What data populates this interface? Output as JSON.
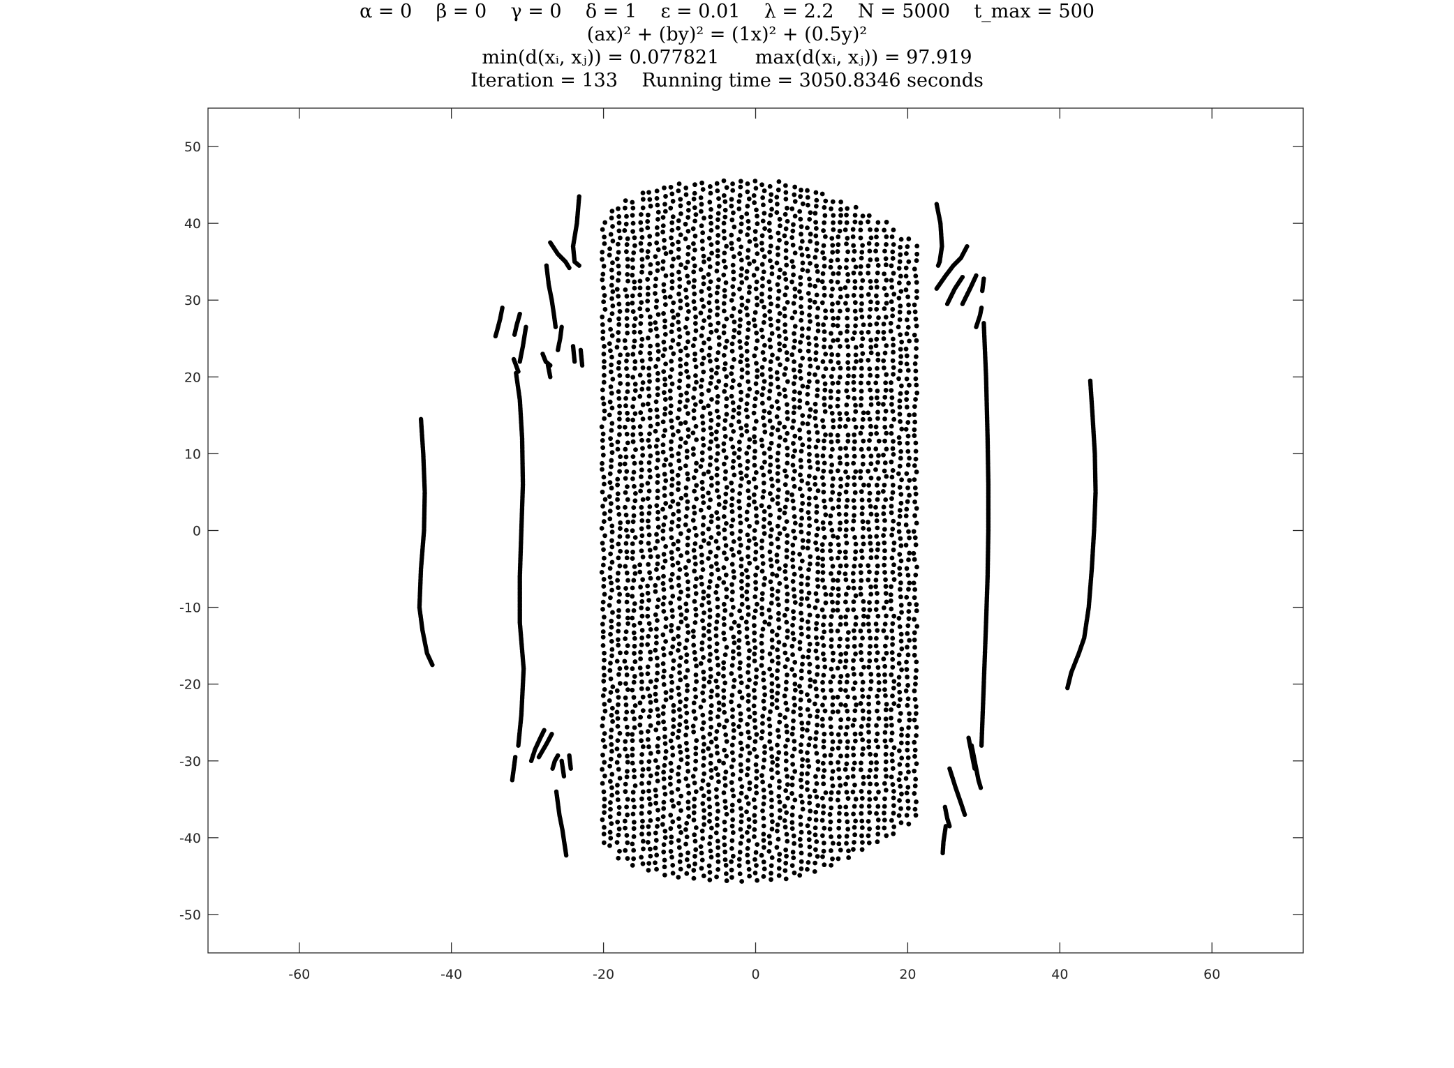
{
  "chart_data": {
    "type": "scatter",
    "title": [
      "α = 0    β = 0    γ = 0    δ = 1    ε = 0.01    λ = 2.2    N = 5000    t_max = 500",
      "(ax)² + (by)² = (1x)² + (0.5y)²",
      "min(d(xᵢ, xⱼ)) = 0.077821      max(d(xᵢ, xⱼ)) = 97.919",
      "Iteration = 133    Running time = 3050.8346 seconds"
    ],
    "xlabel": "",
    "ylabel": "",
    "xlim": [
      -72,
      72
    ],
    "ylim": [
      -55,
      55
    ],
    "x_ticks": [
      -60,
      -40,
      -20,
      0,
      20,
      40,
      60
    ],
    "y_ticks": [
      -50,
      -40,
      -30,
      -20,
      -10,
      0,
      10,
      20,
      30,
      40,
      50
    ],
    "grid": false,
    "marker_color": "#000000",
    "series": [
      {
        "kind": "lattice",
        "x": [
          -20,
          -19,
          -18,
          -17,
          -16,
          -15,
          -14,
          -13,
          -12,
          -11,
          -10,
          -9,
          -8,
          -7,
          -6,
          -5,
          -4,
          -3,
          -2,
          -1,
          0,
          1,
          2,
          3,
          4,
          5,
          6,
          7,
          8,
          9,
          10,
          11,
          12,
          13,
          14,
          15,
          16,
          17,
          18,
          19,
          20,
          21
        ],
        "top": [
          41,
          42,
          43,
          43.5,
          44,
          44.3,
          44.7,
          45,
          45.2,
          45.4,
          45.5,
          45.6,
          45.7,
          45.8,
          45.9,
          46,
          46,
          46,
          46,
          46,
          46,
          46,
          45.9,
          45.8,
          45.7,
          45.5,
          45.3,
          45,
          44.7,
          44.4,
          44,
          43.5,
          43,
          42.5,
          42,
          41.5,
          41,
          40.5,
          40,
          39,
          38.5,
          38
        ],
        "bottom": [
          -41,
          -42,
          -43,
          -43.5,
          -44,
          -44.3,
          -44.7,
          -45,
          -45.2,
          -45.4,
          -45.5,
          -45.6,
          -45.7,
          -45.8,
          -45.9,
          -46,
          -46,
          -46,
          -46,
          -46,
          -46,
          -46,
          -45.9,
          -45.8,
          -45.7,
          -45.5,
          -45.3,
          -45,
          -44.7,
          -44.4,
          -44,
          -43.5,
          -43,
          -42.5,
          -42,
          -41.5,
          -41,
          -40.5,
          -40,
          -39,
          -38.5,
          -38
        ]
      },
      {
        "kind": "curve",
        "x": [
          -44,
          -43.7,
          -43.5,
          -43.6,
          -44,
          -44.2,
          -43.8,
          -43.2,
          -42.5
        ],
        "y": [
          14.5,
          10,
          5,
          0,
          -5,
          -10,
          -13,
          -16,
          -17.5
        ]
      },
      {
        "kind": "curve",
        "x": [
          -31.5,
          -31,
          -30.7,
          -30.6,
          -30.8,
          -31,
          -31,
          -30.5,
          -30.8,
          -31.2
        ],
        "y": [
          20.5,
          17,
          12,
          6,
          0,
          -6,
          -12,
          -18,
          -24,
          -28
        ]
      },
      {
        "kind": "curve",
        "x": [
          44,
          44.3,
          44.6,
          44.7,
          44.5,
          44.2,
          43.8,
          43.2,
          42.5,
          41.5,
          41
        ],
        "y": [
          19.5,
          15,
          10,
          5,
          0,
          -5,
          -10,
          -14,
          -16,
          -18.5,
          -20.5
        ]
      },
      {
        "kind": "curve",
        "x": [
          30,
          30.3,
          30.5,
          30.6,
          30.6,
          30.5,
          30.3,
          30,
          29.7
        ],
        "y": [
          27,
          20,
          12,
          6,
          0,
          -6,
          -12,
          -20,
          -28
        ]
      },
      {
        "kind": "curve",
        "x": [
          -23.2,
          -23.5,
          -24,
          -23.8,
          -23.2
        ],
        "y": [
          43.5,
          40,
          37,
          35,
          34.5
        ]
      },
      {
        "kind": "curve",
        "x": [
          -27.5,
          -27.2,
          -26.8,
          -26.5,
          -26.3
        ],
        "y": [
          34.5,
          32,
          30,
          28,
          26.5
        ]
      },
      {
        "kind": "curve",
        "x": [
          -27,
          -26,
          -25,
          -24.5
        ],
        "y": [
          37.5,
          36,
          35,
          34.2
        ]
      },
      {
        "kind": "curve",
        "x": [
          -33.3,
          -33.6,
          -34,
          -34.2
        ],
        "y": [
          29,
          27.5,
          26,
          25.3
        ]
      },
      {
        "kind": "curve",
        "x": [
          -31,
          -31.4,
          -31.7
        ],
        "y": [
          28.2,
          26.8,
          25.5
        ]
      },
      {
        "kind": "curve",
        "x": [
          -30.2,
          -30.6,
          -31
        ],
        "y": [
          26.5,
          24,
          22
        ]
      },
      {
        "kind": "curve",
        "x": [
          -31.8,
          -31.5,
          -31.2
        ],
        "y": [
          22.3,
          21.5,
          20.7
        ]
      },
      {
        "kind": "curve",
        "x": [
          -25.5,
          -25.7,
          -26
        ],
        "y": [
          26.5,
          25,
          23.5
        ]
      },
      {
        "kind": "curve",
        "x": [
          -28,
          -27.6,
          -27
        ],
        "y": [
          23,
          22,
          21.5
        ]
      },
      {
        "kind": "curve",
        "x": [
          -27.3,
          -27
        ],
        "y": [
          21.5,
          20
        ]
      },
      {
        "kind": "curve",
        "x": [
          -24,
          -23.8
        ],
        "y": [
          24,
          22
        ]
      },
      {
        "kind": "curve",
        "x": [
          -23,
          -22.8
        ],
        "y": [
          23.5,
          21.5
        ]
      },
      {
        "kind": "curve",
        "x": [
          -31.6,
          -31.8,
          -32
        ],
        "y": [
          -29.5,
          -31,
          -32.5
        ]
      },
      {
        "kind": "curve",
        "x": [
          -29.5,
          -29,
          -28.3,
          -27.8
        ],
        "y": [
          -30,
          -28.5,
          -27,
          -26
        ]
      },
      {
        "kind": "curve",
        "x": [
          -28.5,
          -27.5,
          -26.8
        ],
        "y": [
          -29.5,
          -27.8,
          -26.5
        ]
      },
      {
        "kind": "curve",
        "x": [
          -26.7,
          -26.4,
          -26
        ],
        "y": [
          -31,
          -30,
          -29.3
        ]
      },
      {
        "kind": "curve",
        "x": [
          -24.5,
          -24.3
        ],
        "y": [
          -29.3,
          -31
        ]
      },
      {
        "kind": "curve",
        "x": [
          -25.5,
          -25.2
        ],
        "y": [
          -30,
          -32
        ]
      },
      {
        "kind": "curve",
        "x": [
          -26.2,
          -25.8,
          -25.4,
          -25.1,
          -24.9
        ],
        "y": [
          -34,
          -37,
          -39,
          -41,
          -42.3
        ]
      },
      {
        "kind": "curve",
        "x": [
          23.8,
          24.3,
          24.5,
          24.2,
          24
        ],
        "y": [
          42.5,
          40,
          37,
          35,
          34.5
        ]
      },
      {
        "kind": "curve",
        "x": [
          23.8,
          25,
          26,
          27,
          27.8
        ],
        "y": [
          31.5,
          33.2,
          34.5,
          35.5,
          37
        ]
      },
      {
        "kind": "curve",
        "x": [
          25.2,
          26.2,
          27.2
        ],
        "y": [
          29.5,
          31.5,
          33
        ]
      },
      {
        "kind": "curve",
        "x": [
          27.2,
          28.2,
          29
        ],
        "y": [
          29.5,
          31.5,
          33.2
        ]
      },
      {
        "kind": "curve",
        "x": [
          29.8,
          30
        ],
        "y": [
          31.2,
          32.8
        ]
      },
      {
        "kind": "curve",
        "x": [
          29,
          29.5,
          29.7
        ],
        "y": [
          26.5,
          28,
          29
        ]
      },
      {
        "kind": "curve",
        "x": [
          28,
          28.4,
          28.8
        ],
        "y": [
          -27,
          -29,
          -31
        ]
      },
      {
        "kind": "curve",
        "x": [
          28.4,
          28.9,
          29.3,
          29.6
        ],
        "y": [
          -28,
          -30.5,
          -32.5,
          -33.5
        ]
      },
      {
        "kind": "curve",
        "x": [
          25.5,
          26.3,
          27,
          27.5
        ],
        "y": [
          -31,
          -33.5,
          -35.5,
          -37
        ]
      },
      {
        "kind": "curve",
        "x": [
          24.9,
          25.2,
          25.5
        ],
        "y": [
          -36,
          -37.5,
          -38.5
        ]
      },
      {
        "kind": "curve",
        "x": [
          25,
          24.7,
          24.6
        ],
        "y": [
          -38.5,
          -40.5,
          -42
        ]
      }
    ]
  }
}
